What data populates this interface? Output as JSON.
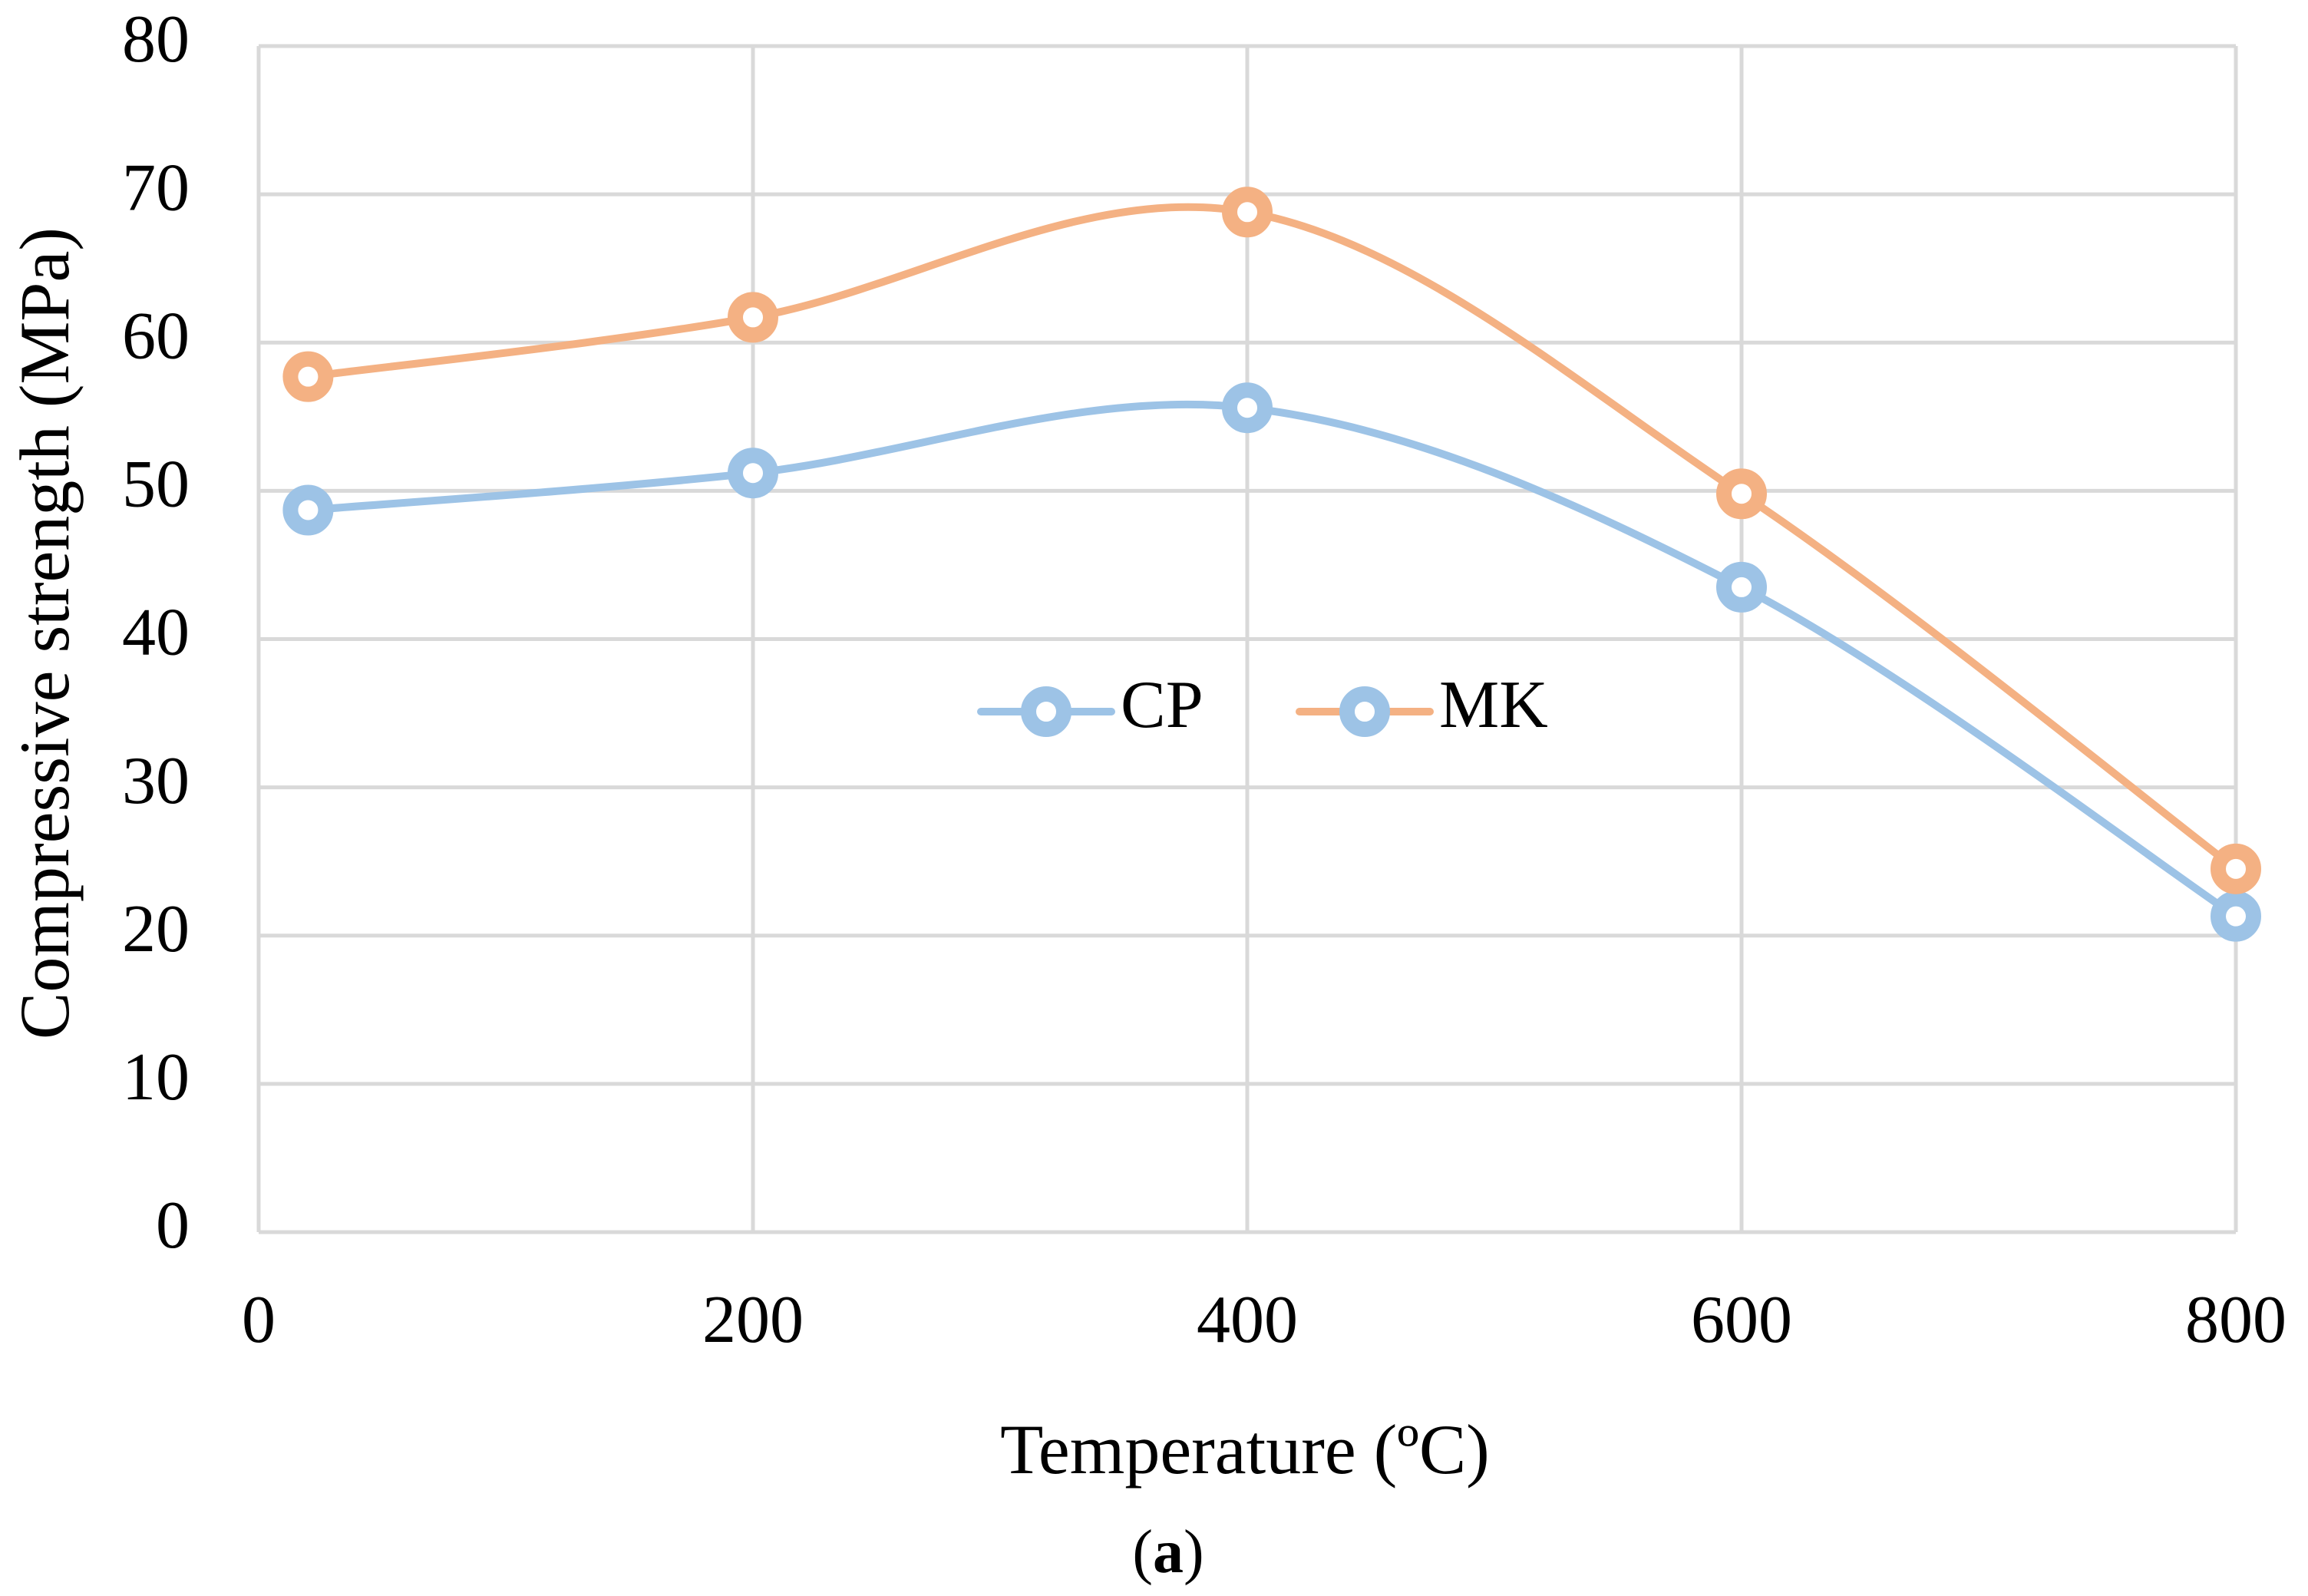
{
  "figure_caption": {
    "open": "(",
    "letter": "a",
    "close": ")"
  },
  "chart_data": {
    "type": "line",
    "smooth": true,
    "title": "",
    "xlabel": "Temperature (ºC)",
    "ylabel": "Compressive strength (MPa)",
    "xlim": [
      0,
      800
    ],
    "ylim": [
      0,
      80
    ],
    "x_ticks": [
      0,
      200,
      400,
      600,
      800
    ],
    "y_ticks": [
      0,
      10,
      20,
      30,
      40,
      50,
      60,
      70,
      80
    ],
    "grid": true,
    "legend_position": "center",
    "series": [
      {
        "name": "CP",
        "color": "#9dc3e6",
        "x": [
          20,
          200,
          400,
          600,
          800
        ],
        "y": [
          48.7,
          51.2,
          55.6,
          43.5,
          21.3
        ]
      },
      {
        "name": "MK",
        "color": "#f4b183",
        "x": [
          20,
          200,
          400,
          600,
          800
        ],
        "y": [
          57.7,
          61.7,
          68.8,
          49.8,
          24.5
        ]
      }
    ],
    "legend": [
      {
        "name": "CP",
        "line_color": "#9dc3e6",
        "marker_color": "#9dc3e6"
      },
      {
        "name": "MK",
        "line_color": "#f4b183",
        "marker_color": "#9dc3e6"
      }
    ]
  }
}
